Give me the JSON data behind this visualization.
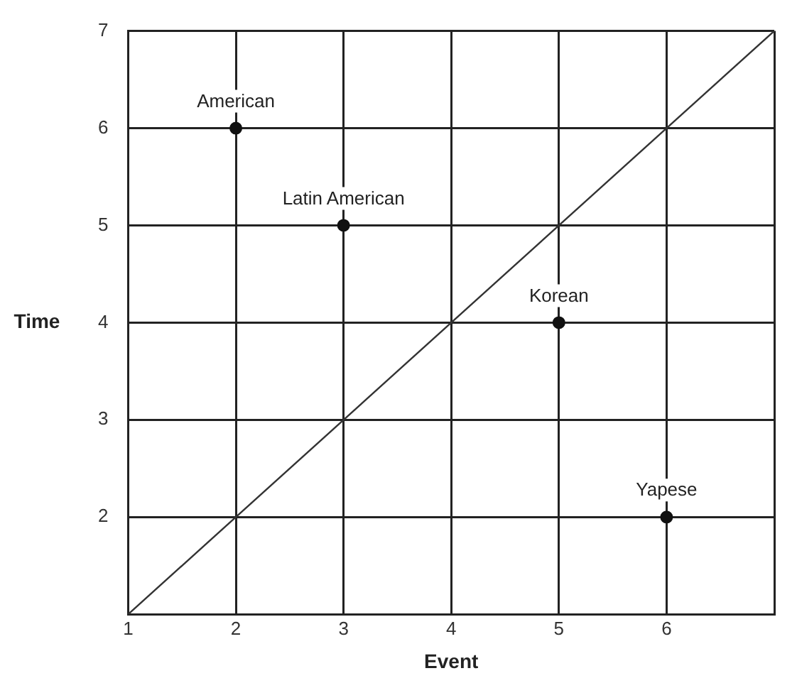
{
  "chart_data": {
    "type": "scatter",
    "xlabel": "Event",
    "ylabel": "Time",
    "xlim": [
      1,
      7
    ],
    "ylim": [
      1,
      7
    ],
    "xticks": [
      1,
      2,
      3,
      4,
      5,
      6,
      {
        "value": 7,
        "label": null
      }
    ],
    "yticks": [
      {
        "value": 1,
        "label": null
      },
      2,
      3,
      4,
      5,
      6,
      7
    ],
    "grid": true,
    "marker": "circle",
    "series": [
      {
        "type": "line",
        "color": "#333333",
        "x": [
          1,
          7
        ],
        "values": [
          1,
          7
        ],
        "marker": "none"
      },
      {
        "type": "scatter",
        "color": "#111111",
        "x": [
          2,
          3,
          5,
          6
        ],
        "values": [
          6,
          5,
          4,
          2
        ]
      }
    ],
    "annotations": [
      {
        "text": "American",
        "x": 2,
        "y": 6
      },
      {
        "text": "Latin American",
        "x": 3,
        "y": 5
      },
      {
        "text": "Korean",
        "x": 5,
        "y": 4
      },
      {
        "text": "Yapese",
        "x": 6,
        "y": 2
      }
    ]
  }
}
